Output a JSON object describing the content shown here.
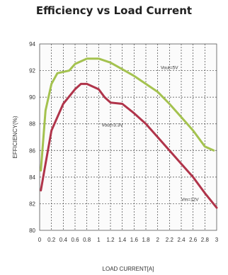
{
  "chart_data": {
    "type": "line",
    "title": "Efficiency vs Load Current",
    "xlabel": "LOAD CURRENT[A]",
    "ylabel": "EFFICIENCY(%)",
    "xlim": [
      0,
      3
    ],
    "ylim": [
      80,
      94
    ],
    "x_ticks": [
      "0",
      "0.2",
      "0.4",
      "0.6",
      "0.8",
      "1",
      "1.2",
      "1.4",
      "1.6",
      "1.8",
      "2",
      "2.2",
      "2.4",
      "2.6",
      "2.8",
      "3"
    ],
    "y_ticks": [
      "80",
      "82",
      "84",
      "86",
      "88",
      "90",
      "92",
      "94"
    ],
    "grid": true,
    "series": [
      {
        "name": "Vout=5V",
        "color": "#a4c24f",
        "points": [
          [
            0.02,
            84.5
          ],
          [
            0.1,
            89.0
          ],
          [
            0.2,
            91.0
          ],
          [
            0.3,
            91.8
          ],
          [
            0.4,
            91.9
          ],
          [
            0.5,
            92.0
          ],
          [
            0.6,
            92.5
          ],
          [
            0.8,
            92.9
          ],
          [
            1.0,
            92.9
          ],
          [
            1.2,
            92.6
          ],
          [
            1.4,
            92.1
          ],
          [
            1.6,
            91.6
          ],
          [
            1.8,
            91.0
          ],
          [
            2.0,
            90.4
          ],
          [
            2.2,
            89.5
          ],
          [
            2.4,
            88.5
          ],
          [
            2.6,
            87.5
          ],
          [
            2.8,
            86.3
          ],
          [
            2.95,
            86.0
          ]
        ]
      },
      {
        "name": "Vout=3.3V",
        "color": "#b0344a",
        "points": [
          [
            0.02,
            83.0
          ],
          [
            0.1,
            85.0
          ],
          [
            0.2,
            87.5
          ],
          [
            0.4,
            89.5
          ],
          [
            0.6,
            90.6
          ],
          [
            0.7,
            91.0
          ],
          [
            0.8,
            91.0
          ],
          [
            0.9,
            90.8
          ],
          [
            1.0,
            90.6
          ],
          [
            1.1,
            90.0
          ],
          [
            1.2,
            89.6
          ],
          [
            1.4,
            89.5
          ],
          [
            1.6,
            88.8
          ],
          [
            1.8,
            88.0
          ],
          [
            2.0,
            87.0
          ],
          [
            2.2,
            86.0
          ],
          [
            2.4,
            85.0
          ],
          [
            2.6,
            84.0
          ],
          [
            2.8,
            82.8
          ],
          [
            3.0,
            81.7
          ]
        ]
      }
    ],
    "annotations": [
      {
        "text": "Vout=5V",
        "x": 2.05,
        "y": 92.1
      },
      {
        "text": "Vout=3.3V",
        "x": 1.05,
        "y": 87.8
      },
      {
        "text": "Vin=12V",
        "x": 2.4,
        "y": 82.2
      }
    ]
  }
}
